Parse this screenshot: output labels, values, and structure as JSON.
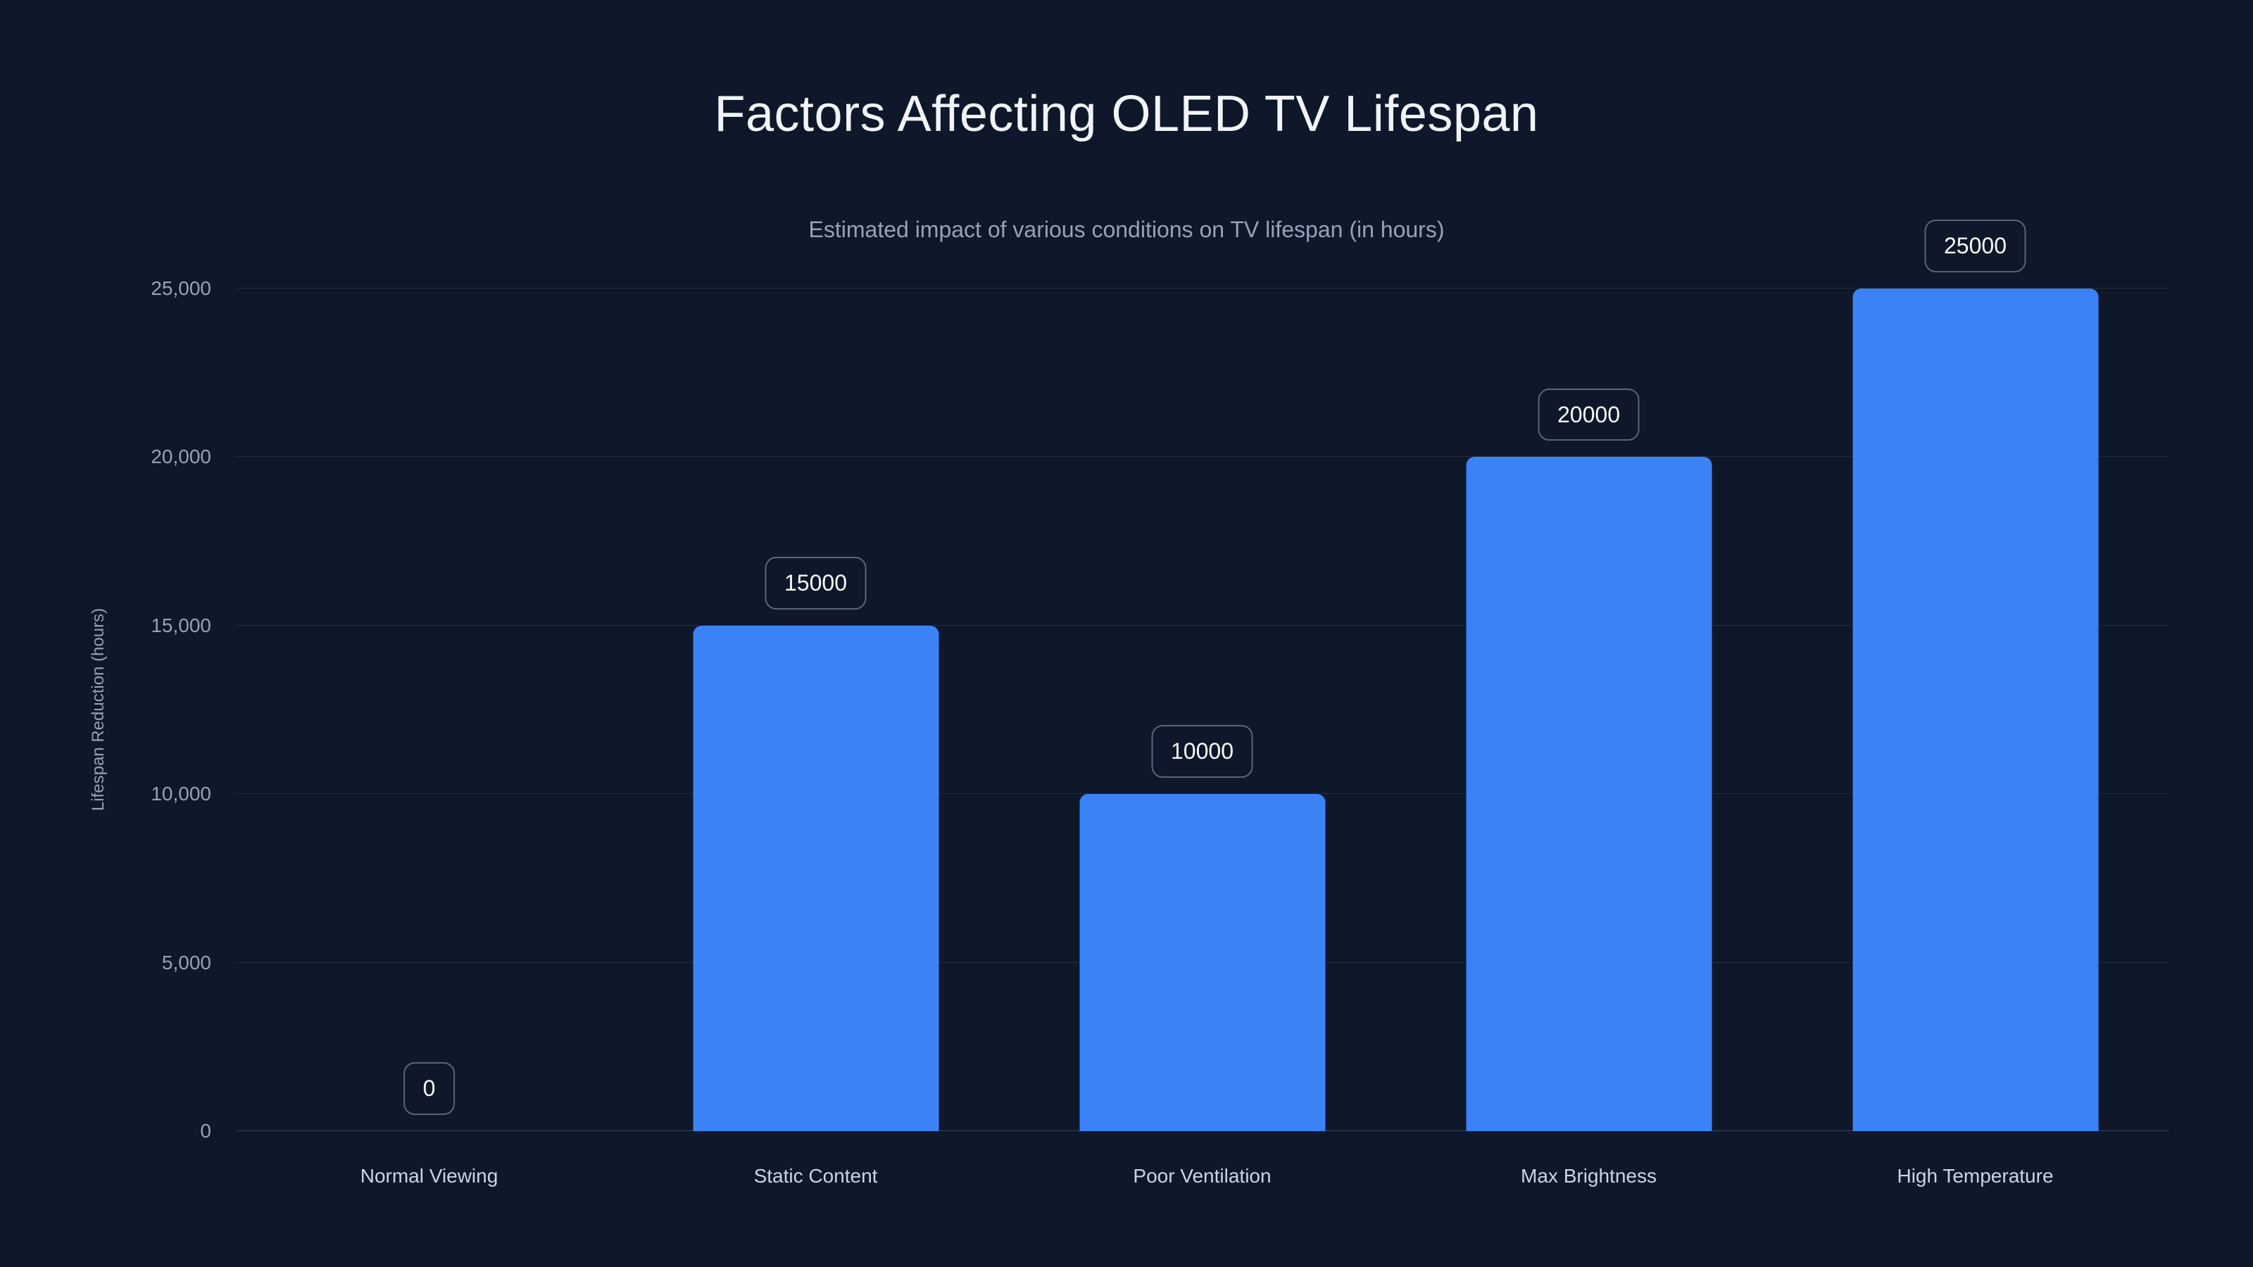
{
  "page": {
    "background_color": "#0F172A",
    "accent_color": "#3B82F6"
  },
  "chart_data": {
    "type": "bar",
    "title": "Factors Affecting OLED TV Lifespan",
    "subtitle": "Estimated impact of various conditions on TV lifespan (in hours)",
    "categories": [
      "Normal Viewing",
      "Static Content",
      "Poor Ventilation",
      "Max Brightness",
      "High Temperature"
    ],
    "values": [
      0,
      15000,
      10000,
      20000,
      25000
    ],
    "value_labels": [
      "0",
      "15000",
      "10000",
      "20000",
      "25000"
    ],
    "xlabel": "",
    "ylabel": "Lifespan Reduction (hours)",
    "ylim": [
      0,
      25000
    ],
    "yticks": [
      0,
      5000,
      10000,
      15000,
      20000,
      25000
    ],
    "ytick_labels": [
      "0",
      "5,000",
      "10,000",
      "15,000",
      "20,000",
      "25,000"
    ],
    "grid": true,
    "legend": false,
    "bar_color": "#3B82F6"
  }
}
